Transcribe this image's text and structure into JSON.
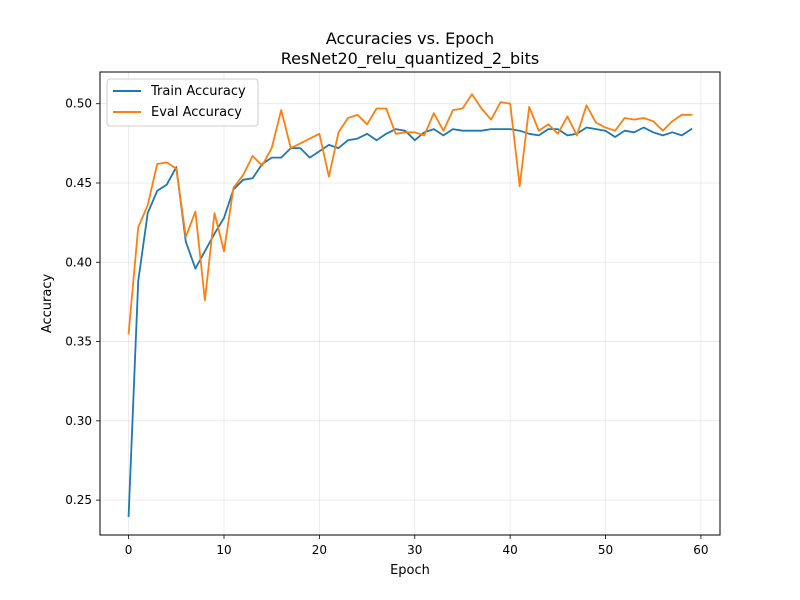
{
  "chart_data": {
    "type": "line",
    "title": "Accuracies vs. Epoch",
    "subtitle": "ResNet20_relu_quantized_2_bits",
    "xlabel": "Epoch",
    "ylabel": "Accuracy",
    "xlim": [
      -3,
      62
    ],
    "ylim": [
      0.228,
      0.52
    ],
    "xticks": [
      0,
      10,
      20,
      30,
      40,
      50,
      60
    ],
    "yticks": [
      0.25,
      0.3,
      0.35,
      0.4,
      0.45,
      0.5
    ],
    "ytick_labels": [
      "0.25",
      "0.30",
      "0.35",
      "0.40",
      "0.45",
      "0.50"
    ],
    "grid": true,
    "legend_position": "top-left",
    "x": [
      0,
      1,
      2,
      3,
      4,
      5,
      6,
      7,
      8,
      9,
      10,
      11,
      12,
      13,
      14,
      15,
      16,
      17,
      18,
      19,
      20,
      21,
      22,
      23,
      24,
      25,
      26,
      27,
      28,
      29,
      30,
      31,
      32,
      33,
      34,
      35,
      36,
      37,
      38,
      39,
      40,
      41,
      42,
      43,
      44,
      45,
      46,
      47,
      48,
      49,
      50,
      51,
      52,
      53,
      54,
      55,
      56,
      57,
      58,
      59
    ],
    "series": [
      {
        "name": "Train Accuracy",
        "color": "#1f77b4",
        "values": [
          0.24,
          0.388,
          0.431,
          0.445,
          0.449,
          0.46,
          0.413,
          0.396,
          0.407,
          0.418,
          0.428,
          0.446,
          0.452,
          0.453,
          0.462,
          0.466,
          0.466,
          0.472,
          0.472,
          0.466,
          0.47,
          0.474,
          0.472,
          0.477,
          0.478,
          0.481,
          0.477,
          0.481,
          0.484,
          0.483,
          0.477,
          0.482,
          0.484,
          0.48,
          0.484,
          0.483,
          0.483,
          0.483,
          0.484,
          0.484,
          0.484,
          0.483,
          0.481,
          0.48,
          0.484,
          0.484,
          0.48,
          0.481,
          0.485,
          0.484,
          0.483,
          0.479,
          0.483,
          0.482,
          0.485,
          0.482,
          0.48,
          0.482,
          0.48,
          0.484
        ]
      },
      {
        "name": "Eval Accuracy",
        "color": "#ff7f0e",
        "values": [
          0.355,
          0.422,
          0.436,
          0.462,
          0.463,
          0.459,
          0.416,
          0.432,
          0.376,
          0.431,
          0.407,
          0.447,
          0.455,
          0.467,
          0.461,
          0.472,
          0.496,
          0.472,
          0.475,
          0.478,
          0.481,
          0.454,
          0.482,
          0.491,
          0.493,
          0.487,
          0.497,
          0.497,
          0.481,
          0.482,
          0.482,
          0.48,
          0.494,
          0.483,
          0.496,
          0.497,
          0.506,
          0.497,
          0.49,
          0.501,
          0.5,
          0.448,
          0.498,
          0.483,
          0.487,
          0.481,
          0.492,
          0.48,
          0.499,
          0.488,
          0.485,
          0.483,
          0.491,
          0.49,
          0.491,
          0.489,
          0.483,
          0.489,
          0.493,
          0.493
        ]
      }
    ]
  }
}
